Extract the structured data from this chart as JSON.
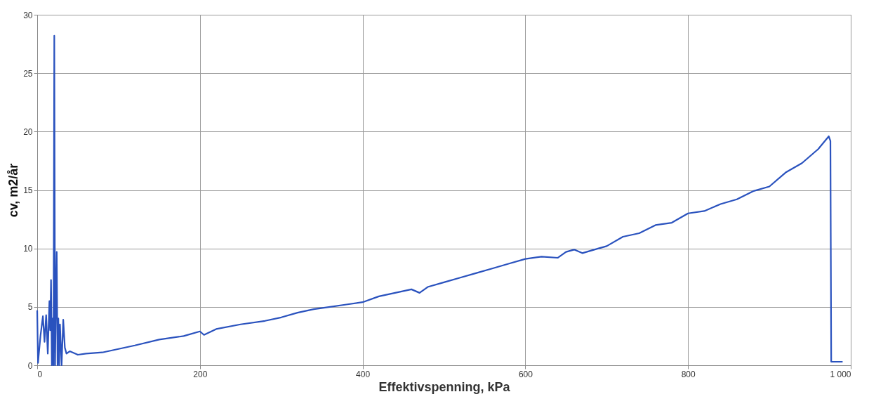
{
  "chart_data": {
    "type": "line",
    "xlabel": "Effektivspenning, kPa",
    "ylabel": "cv, m2/år",
    "xlim": [
      0,
      1000
    ],
    "ylim": [
      0,
      30
    ],
    "xticks": [
      0,
      200,
      400,
      600,
      800,
      {
        "value": 1000,
        "label": "1 000"
      }
    ],
    "yticks": [
      0,
      5,
      10,
      15,
      20,
      25,
      30
    ],
    "grid": true,
    "marker": "none",
    "line_style": "solid",
    "series": [
      {
        "color": "#2a52be",
        "x": [
          0,
          1,
          4,
          7,
          9,
          11,
          13,
          15,
          16,
          17,
          18,
          19,
          20,
          21,
          22,
          23,
          24,
          25,
          26,
          27,
          28,
          30,
          32,
          34,
          36,
          40,
          50,
          60,
          80,
          100,
          120,
          150,
          180,
          200,
          205,
          220,
          250,
          280,
          300,
          320,
          340,
          360,
          380,
          400,
          420,
          440,
          460,
          470,
          480,
          500,
          520,
          540,
          560,
          580,
          600,
          620,
          640,
          650,
          660,
          670,
          690,
          700,
          720,
          740,
          760,
          780,
          800,
          820,
          840,
          860,
          880,
          900,
          920,
          940,
          960,
          973,
          975,
          976,
          990
        ],
        "values": [
          4.7,
          0.2,
          2.5,
          4.2,
          2,
          4.3,
          1,
          5.5,
          3,
          7.3,
          0,
          4,
          0,
          28.2,
          0,
          6,
          9.7,
          0,
          4,
          0,
          3.5,
          0,
          3.9,
          1.5,
          1.0,
          1.2,
          0.9,
          1.0,
          1.1,
          1.4,
          1.7,
          2.2,
          2.5,
          2.9,
          2.6,
          3.1,
          3.5,
          3.8,
          4.1,
          4.5,
          4.8,
          5.0,
          5.2,
          5.4,
          5.9,
          6.2,
          6.5,
          6.2,
          6.7,
          7.1,
          7.5,
          7.9,
          8.3,
          8.7,
          9.1,
          9.3,
          9.2,
          9.7,
          9.9,
          9.6,
          10.0,
          10.2,
          11.0,
          11.3,
          12.0,
          12.2,
          13.0,
          13.2,
          13.8,
          14.2,
          14.9,
          15.3,
          16.5,
          17.3,
          18.5,
          19.6,
          19.2,
          0.3,
          0.3
        ]
      }
    ]
  }
}
